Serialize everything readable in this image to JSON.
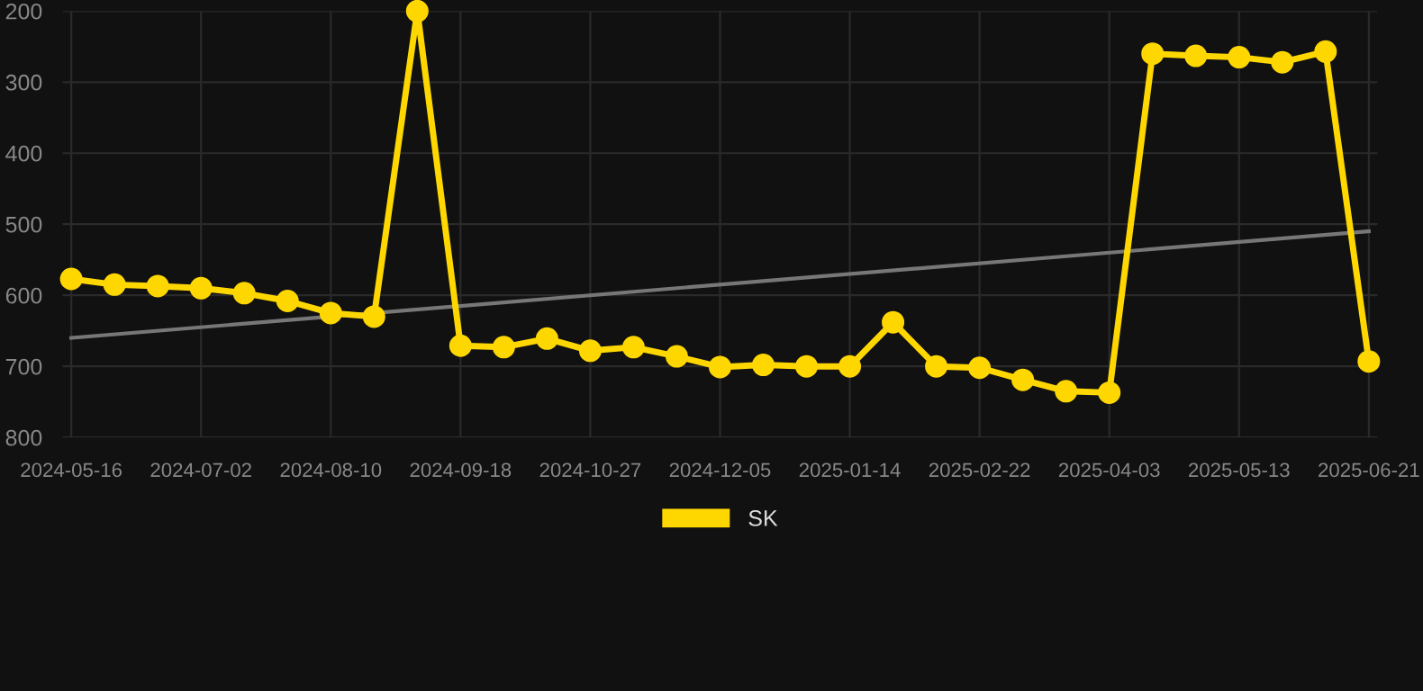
{
  "chart_data": {
    "type": "line",
    "categories": [
      "2024-05-16",
      null,
      null,
      "2024-07-02",
      null,
      null,
      "2024-08-10",
      null,
      null,
      "2024-09-18",
      null,
      null,
      "2024-10-27",
      null,
      null,
      "2024-12-05",
      null,
      null,
      "2025-01-14",
      null,
      null,
      "2025-02-22",
      null,
      null,
      "2025-04-03",
      null,
      null,
      "2025-05-13",
      null,
      null,
      "2025-06-21"
    ],
    "series": [
      {
        "name": "SK",
        "color": "#ffd700",
        "marker": "circle",
        "values": [
          577,
          585,
          587,
          590,
          597,
          608,
          625,
          630,
          200,
          671,
          673,
          661,
          678,
          673,
          686,
          701,
          698,
          700,
          700,
          638,
          700,
          702,
          719,
          735,
          737,
          260,
          263,
          265,
          272,
          257,
          693
        ]
      },
      {
        "type": "line",
        "color": "#777777",
        "marker": "none",
        "values": [
          660,
          null,
          null,
          null,
          null,
          null,
          null,
          null,
          null,
          null,
          null,
          null,
          null,
          null,
          null,
          null,
          null,
          null,
          null,
          null,
          null,
          null,
          null,
          null,
          null,
          null,
          null,
          null,
          null,
          null,
          510
        ]
      }
    ],
    "ylim": [
      800,
      200
    ],
    "yticks": [
      200,
      300,
      400,
      500,
      600,
      700,
      800
    ],
    "grid": true,
    "legend": "bottom",
    "line_style": "solid"
  }
}
